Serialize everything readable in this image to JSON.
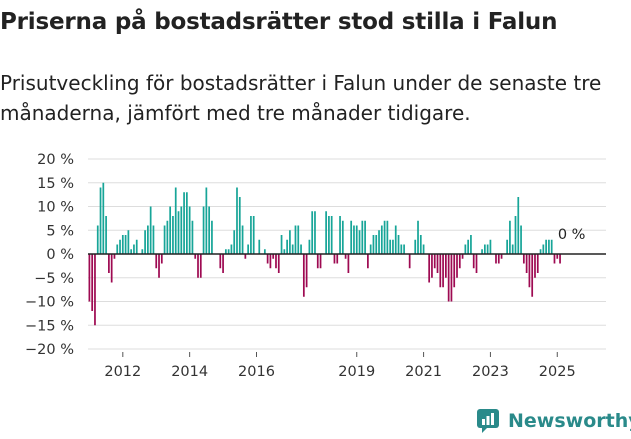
{
  "header": {
    "title": "Priserna på bostadsrätter stod stilla i Falun",
    "subtitle": "Prisutveckling för bostadsrätter i Falun under de senaste tre månaderna, jämfört med tre månader tidigare."
  },
  "brand": {
    "name": "Newsworthy"
  },
  "colors": {
    "positive": "#17a598",
    "negative": "#9e0a52",
    "grid": "#dddddd",
    "zero": "#222222",
    "brand": "#2a8a8a"
  },
  "chart_data": {
    "type": "bar",
    "ylim": [
      -20,
      20
    ],
    "yticks": [
      20,
      15,
      10,
      5,
      0,
      -5,
      -10,
      -15,
      -20
    ],
    "ytick_labels": [
      "20 %",
      "15 %",
      "10 %",
      "5 %",
      "0 %",
      "−5 %",
      "−10 %",
      "−15 %",
      "−20 %"
    ],
    "xticks": [
      {
        "index": 12,
        "label": "2012"
      },
      {
        "index": 36,
        "label": "2014"
      },
      {
        "index": 60,
        "label": "2016"
      },
      {
        "index": 96,
        "label": "2019"
      },
      {
        "index": 120,
        "label": "2021"
      },
      {
        "index": 144,
        "label": "2023"
      },
      {
        "index": 168,
        "label": "2025"
      }
    ],
    "x_range_months": [
      0,
      186
    ],
    "start": "2011-01",
    "end_label": "0 %",
    "values": [
      -10,
      -12,
      -15,
      6,
      14,
      15,
      8,
      -4,
      -6,
      -1,
      2,
      3,
      4,
      4,
      5,
      1,
      2,
      3,
      0,
      1,
      5,
      6,
      10,
      6,
      -3,
      -5,
      -2,
      6,
      7,
      10,
      8,
      14,
      9,
      10,
      13,
      13,
      10,
      7,
      -1,
      -5,
      -5,
      10,
      14,
      10,
      7,
      0,
      0,
      -3,
      -4,
      1,
      1,
      2,
      5,
      14,
      12,
      6,
      -1,
      2,
      8,
      8,
      0,
      3,
      0,
      1,
      -2,
      -3,
      -1,
      -3,
      -4,
      4,
      1,
      3,
      5,
      2,
      6,
      6,
      2,
      -9,
      -7,
      3,
      9,
      9,
      -3,
      -3,
      0,
      9,
      8,
      8,
      -2,
      -2,
      8,
      7,
      -1,
      -4,
      7,
      6,
      6,
      5,
      7,
      7,
      -3,
      2,
      4,
      4,
      5,
      6,
      7,
      7,
      3,
      3,
      6,
      4,
      2,
      2,
      0,
      -3,
      0,
      3,
      7,
      4,
      2,
      0,
      -6,
      -5,
      -3,
      -4,
      -7,
      -7,
      -5,
      -10,
      -10,
      -7,
      -5,
      -3,
      -1,
      2,
      3,
      4,
      -3,
      -4,
      0,
      1,
      2,
      2,
      3,
      0,
      -2,
      -2,
      -1,
      0,
      3,
      7,
      2,
      8,
      12,
      6,
      -2,
      -4,
      -7,
      -9,
      -5,
      -4,
      1,
      2,
      3,
      3,
      3,
      -2,
      -1,
      -2,
      0
    ]
  }
}
